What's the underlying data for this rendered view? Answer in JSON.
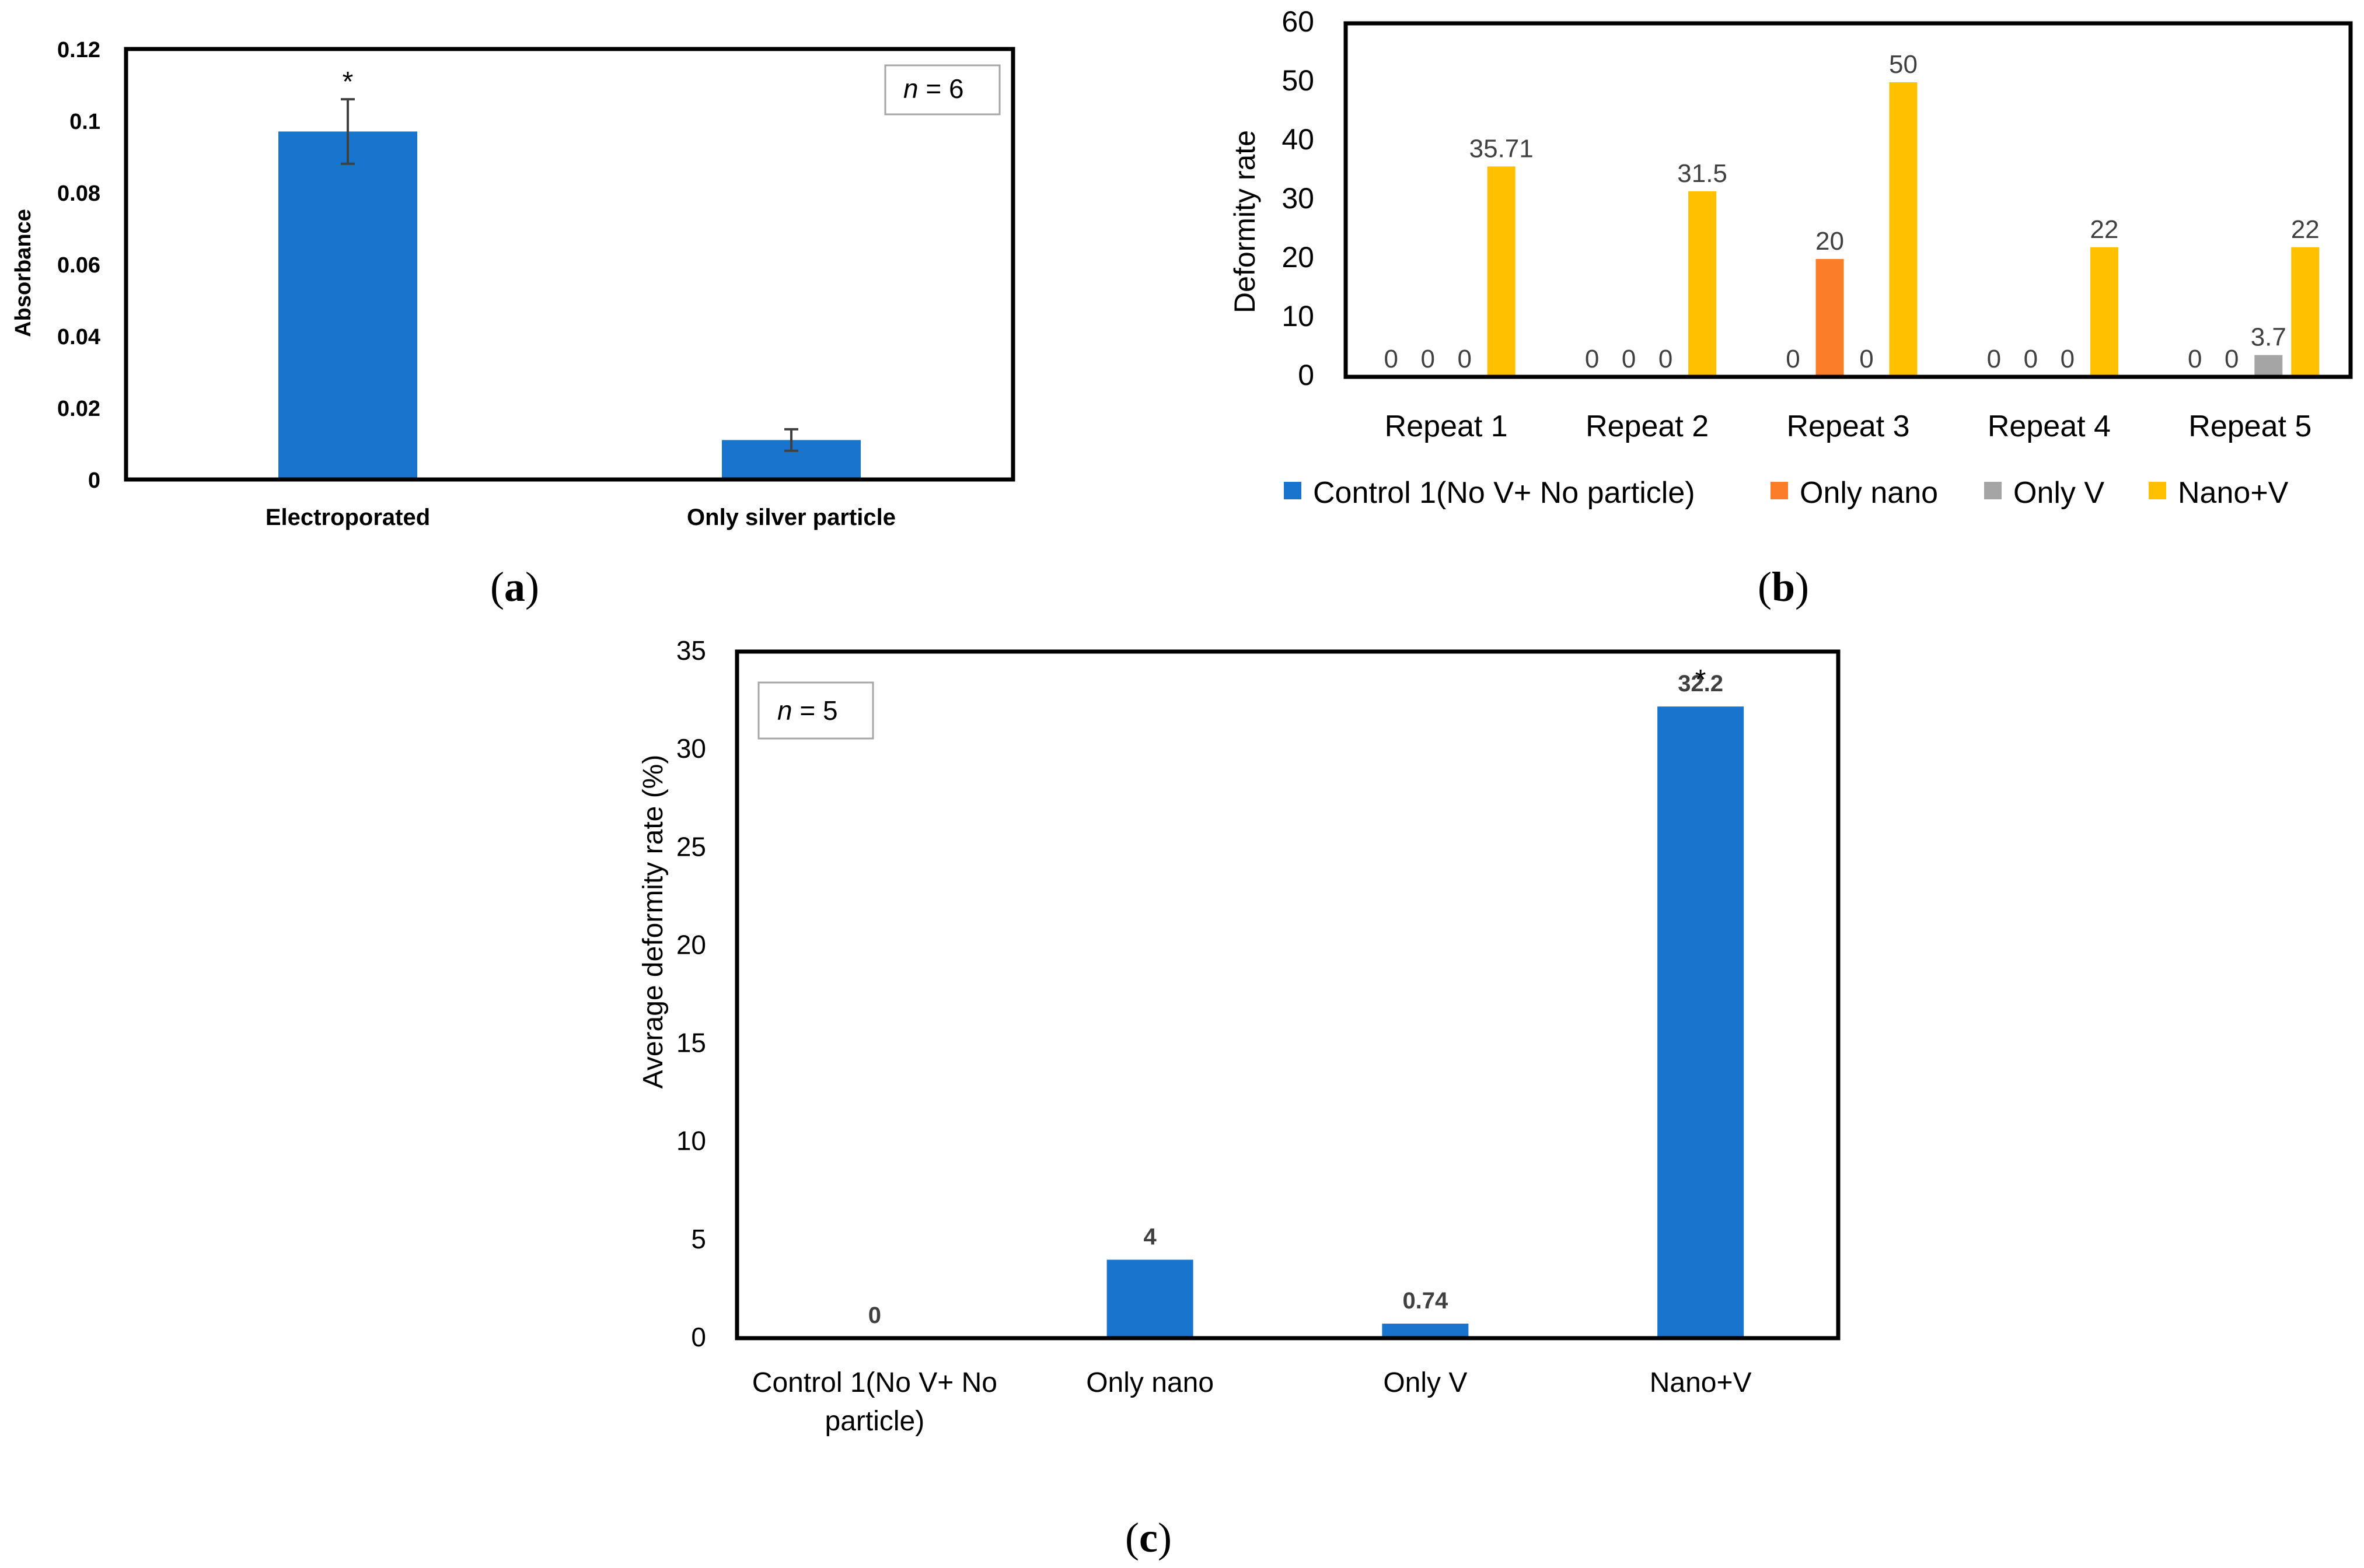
{
  "figure": {
    "panels": [
      {
        "letter": "a"
      },
      {
        "letter": "b"
      },
      {
        "letter": "c"
      }
    ]
  },
  "chart_data": [
    {
      "panel": "a",
      "type": "bar",
      "categories": [
        "Electroporated",
        "Only silver particle"
      ],
      "values": [
        0.097,
        0.011
      ],
      "errors": [
        0.009,
        0.003
      ],
      "significance": [
        "*",
        ""
      ],
      "title": "",
      "xlabel": "",
      "ylabel": "Absorbance",
      "ylim": [
        0,
        0.12
      ],
      "yticks": [
        "0",
        "0.02",
        "0.04",
        "0.06",
        "0.08",
        "0.1",
        "0.12"
      ],
      "annotation": {
        "n_label": "n",
        "n_value": " = 6"
      },
      "color": "#1874CD",
      "grid": false
    },
    {
      "panel": "b",
      "type": "bar",
      "categories": [
        "Repeat 1",
        "Repeat 2",
        "Repeat 3",
        "Repeat 4",
        "Repeat 5"
      ],
      "series": [
        {
          "name": "Control 1(No V+ No particle)",
          "color": "#1874CD",
          "values": [
            0,
            0,
            0,
            0,
            0
          ],
          "labels": [
            "0",
            "0",
            "0",
            "0",
            "0"
          ]
        },
        {
          "name": "Only nano",
          "color": "#FB7D2A",
          "values": [
            0,
            0,
            20,
            0,
            0
          ],
          "labels": [
            "0",
            "0",
            "20",
            "0",
            "0"
          ]
        },
        {
          "name": "Only V",
          "color": "#A5A5A5",
          "values": [
            0,
            0,
            0,
            0,
            3.7
          ],
          "labels": [
            "0",
            "0",
            "0",
            "0",
            "3.7"
          ]
        },
        {
          "name": "Nano+V",
          "color": "#FFC000",
          "values": [
            35.71,
            31.5,
            50,
            22,
            22
          ],
          "labels": [
            "35.71",
            "31.5",
            "50",
            "22",
            "22"
          ]
        }
      ],
      "title": "",
      "xlabel": "",
      "ylabel": "Deformity rate",
      "ylim": [
        0,
        60
      ],
      "yticks": [
        "0",
        "10",
        "20",
        "30",
        "40",
        "50",
        "60"
      ],
      "legend": "bottom",
      "grid": false
    },
    {
      "panel": "c",
      "type": "bar",
      "categories": [
        [
          "Control 1(No V+ No",
          "particle)"
        ],
        [
          "Only nano"
        ],
        [
          "Only V"
        ],
        [
          "Nano+V"
        ]
      ],
      "values": [
        0,
        4,
        0.74,
        32.2
      ],
      "labels": [
        "0",
        "4",
        "0.74",
        "32.2"
      ],
      "significance": [
        "",
        "",
        "",
        "*"
      ],
      "title": "",
      "xlabel": "",
      "ylabel": "Average deformity rate (%)",
      "ylim": [
        0,
        35
      ],
      "yticks": [
        "0",
        "5",
        "10",
        "15",
        "20",
        "25",
        "30",
        "35"
      ],
      "annotation": {
        "n_label": "n",
        "n_value": " = 5"
      },
      "color": "#1874CD",
      "grid": false
    }
  ]
}
